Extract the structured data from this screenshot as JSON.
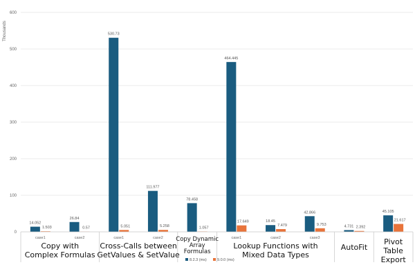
{
  "chart_data": {
    "type": "bar",
    "ylabel": "Thousands",
    "ylim": [
      0,
      600
    ],
    "yticks": [
      0,
      100,
      200,
      300,
      400,
      500,
      600
    ],
    "grid": true,
    "legend_position": "bottom",
    "series": [
      {
        "name": "8.2.3 (ms)",
        "color": "#1a5c80"
      },
      {
        "name": "9.0.0 (ms)",
        "color": "#e8743b"
      }
    ],
    "groups": [
      {
        "label": "Copy with Complex Formulas",
        "lines": [
          "Copy with",
          "Complex Formulas"
        ],
        "cases": [
          {
            "label": "case1",
            "values": [
              14.052,
              1.503
            ]
          },
          {
            "label": "case2",
            "values": [
              26.84,
              0.57
            ]
          }
        ]
      },
      {
        "label": "Cross-Calls between GetValues & SetValue",
        "lines": [
          "Cross-Calls between",
          "GetValues & SetValue"
        ],
        "cases": [
          {
            "label": "case1",
            "values": [
              530.73,
              5.051
            ]
          },
          {
            "label": "case2",
            "values": [
              111.977,
              5.258
            ]
          }
        ]
      },
      {
        "label": "Copy Dynamic Array Formulas",
        "lines": [
          "Copy Dynamic",
          "Array",
          "Formulas"
        ],
        "cases": [
          {
            "label": "",
            "values": [
              78.458,
              1.057
            ]
          }
        ]
      },
      {
        "label": "Lookup Functions with Mixed Data Types",
        "lines": [
          "Lookup Functions with",
          "Mixed Data Types"
        ],
        "cases": [
          {
            "label": "case1",
            "values": [
              464.445,
              17.649
            ]
          },
          {
            "label": "case2",
            "values": [
              18.45,
              7.479
            ]
          },
          {
            "label": "case3",
            "values": [
              42.866,
              9.753
            ]
          }
        ]
      },
      {
        "label": "AutoFit",
        "lines": [
          "AutoFit"
        ],
        "cases": [
          {
            "label": "",
            "values": [
              4.731,
              2.392
            ]
          }
        ]
      },
      {
        "label": "Pivot Table Export",
        "lines": [
          "Pivot",
          "Table",
          "Export"
        ],
        "cases": [
          {
            "label": "",
            "values": [
              45.105,
              21.617
            ]
          }
        ]
      }
    ]
  }
}
